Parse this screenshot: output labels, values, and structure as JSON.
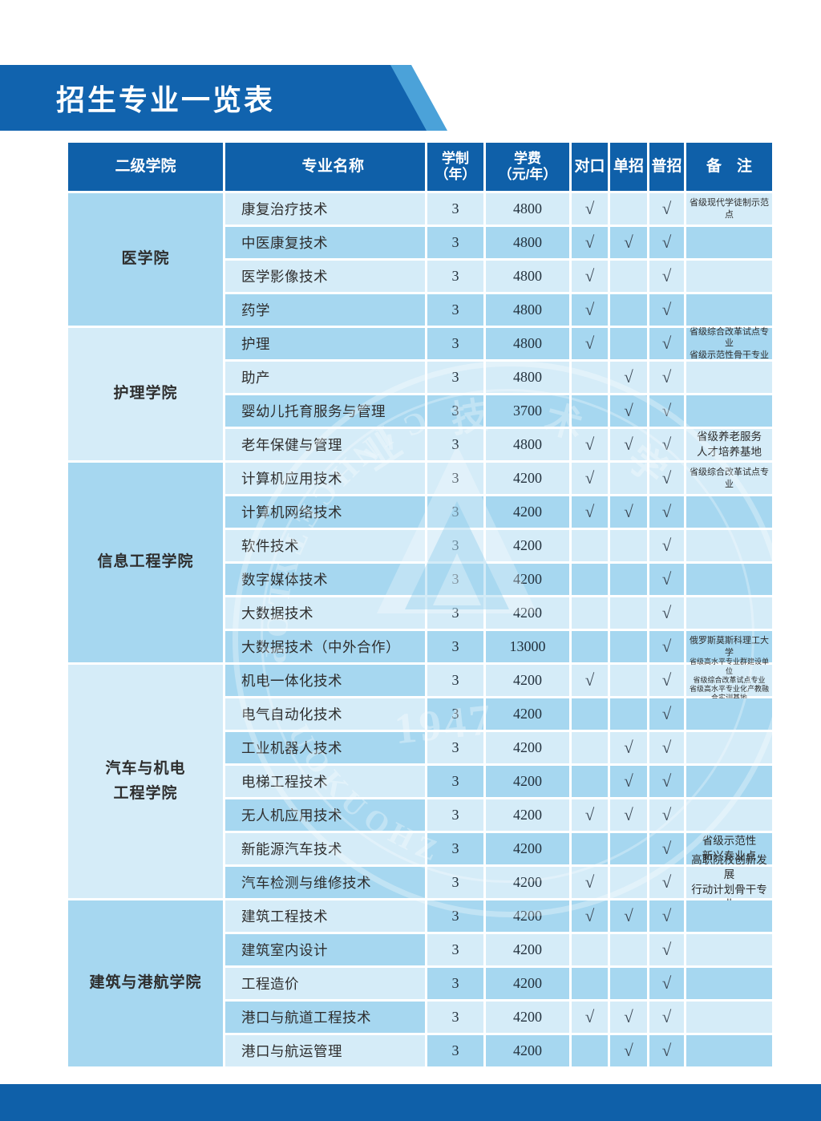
{
  "page_title": "招生专业一览表",
  "colors": {
    "banner_blue": "#1163ae",
    "banner_accent": "#4ba2d9",
    "header_blue": "#0f60a9",
    "row_light": "#d5ecf8",
    "row_medium": "#a6d7f0",
    "footer_blue": "#0f60a9",
    "check_color": "#3b4754"
  },
  "table": {
    "headers": [
      {
        "key": "college",
        "label": "二级学院",
        "small": false
      },
      {
        "key": "major",
        "label": "专业名称",
        "small": false
      },
      {
        "key": "years",
        "label": "学制\n（年）",
        "small": true
      },
      {
        "key": "tuition",
        "label": "学费\n（元/年）",
        "small": true
      },
      {
        "key": "dk",
        "label": "对口",
        "small": false
      },
      {
        "key": "dz",
        "label": "单招",
        "small": false
      },
      {
        "key": "pz",
        "label": "普招",
        "small": false
      },
      {
        "key": "remark",
        "label": "备　注",
        "small": false
      }
    ],
    "check_symbol": "√",
    "groups": [
      {
        "college": "医学院",
        "college_shade": "M",
        "rows": [
          {
            "major": "康复治疗技术",
            "years": "3",
            "tuition": "4800",
            "dk": true,
            "dz": false,
            "pz": true,
            "remark": [
              "省级现代学徒制示范点"
            ],
            "remark_size": "xs",
            "shade": "L",
            "name_shade": "L"
          },
          {
            "major": "中医康复技术",
            "years": "3",
            "tuition": "4800",
            "dk": true,
            "dz": true,
            "pz": true,
            "remark": [],
            "remark_size": "xs",
            "shade": "M",
            "name_shade": "M"
          },
          {
            "major": "医学影像技术",
            "years": "3",
            "tuition": "4800",
            "dk": true,
            "dz": false,
            "pz": true,
            "remark": [],
            "remark_size": "xs",
            "shade": "L",
            "name_shade": "L"
          },
          {
            "major": "药学",
            "years": "3",
            "tuition": "4800",
            "dk": true,
            "dz": false,
            "pz": true,
            "remark": [],
            "remark_size": "xs",
            "shade": "M",
            "name_shade": "M"
          }
        ]
      },
      {
        "college": "护理学院",
        "college_shade": "L",
        "rows": [
          {
            "major": "护理",
            "years": "3",
            "tuition": "4800",
            "dk": true,
            "dz": false,
            "pz": true,
            "remark": [
              "省级综合改革试点专业",
              "省级示范性骨干专业"
            ],
            "remark_size": "xs",
            "shade": "M",
            "name_shade": "M"
          },
          {
            "major": "助产",
            "years": "3",
            "tuition": "4800",
            "dk": false,
            "dz": true,
            "pz": true,
            "remark": [],
            "remark_size": "xs",
            "shade": "L",
            "name_shade": "L"
          },
          {
            "major": "婴幼儿托育服务与管理",
            "years": "3",
            "tuition": "3700",
            "dk": false,
            "dz": true,
            "pz": true,
            "remark": [],
            "remark_size": "xs",
            "shade": "M",
            "name_shade": "M"
          },
          {
            "major": "老年保健与管理",
            "years": "3",
            "tuition": "4800",
            "dk": true,
            "dz": true,
            "pz": true,
            "remark": [
              "省级养老服务",
              "人才培养基地"
            ],
            "remark_size": "md",
            "shade": "L",
            "name_shade": "L"
          }
        ]
      },
      {
        "college": "信息工程学院",
        "college_shade": "M",
        "rows": [
          {
            "major": "计算机应用技术",
            "years": "3",
            "tuition": "4200",
            "dk": true,
            "dz": false,
            "pz": true,
            "remark": [
              "省级综合改革试点专业"
            ],
            "remark_size": "xs",
            "shade": "L",
            "name_shade": "L"
          },
          {
            "major": "计算机网络技术",
            "years": "3",
            "tuition": "4200",
            "dk": true,
            "dz": true,
            "pz": true,
            "remark": [],
            "remark_size": "xs",
            "shade": "M",
            "name_shade": "M"
          },
          {
            "major": "软件技术",
            "years": "3",
            "tuition": "4200",
            "dk": false,
            "dz": false,
            "pz": true,
            "remark": [],
            "remark_size": "xs",
            "shade": "L",
            "name_shade": "L"
          },
          {
            "major": "数字媒体技术",
            "years": "3",
            "tuition": "4200",
            "dk": false,
            "dz": false,
            "pz": true,
            "remark": [],
            "remark_size": "xs",
            "shade": "M",
            "name_shade": "M"
          },
          {
            "major": "大数据技术",
            "years": "3",
            "tuition": "4200",
            "dk": false,
            "dz": false,
            "pz": true,
            "remark": [],
            "remark_size": "xs",
            "shade": "L",
            "name_shade": "L"
          },
          {
            "major": "大数据技术（中外合作）",
            "years": "3",
            "tuition": "13000",
            "dk": false,
            "dz": false,
            "pz": true,
            "remark": [
              "俄罗斯莫斯科理工大学"
            ],
            "remark_size": "xs",
            "shade": "M",
            "name_shade": "M"
          }
        ]
      },
      {
        "college": "汽车与机电\n工程学院",
        "college_shade": "L",
        "rows": [
          {
            "major": "机电一体化技术",
            "years": "3",
            "tuition": "4200",
            "dk": true,
            "dz": false,
            "pz": true,
            "remark": [
              "省级高水平专业群建设单位",
              "省级综合改革试点专业",
              "省级高水平专业化产教融合实训基地"
            ],
            "remark_size": "xxs",
            "shade": "L",
            "name_shade": "M"
          },
          {
            "major": "电气自动化技术",
            "years": "3",
            "tuition": "4200",
            "dk": false,
            "dz": false,
            "pz": true,
            "remark": [],
            "remark_size": "xs",
            "shade": "M",
            "name_shade": "L"
          },
          {
            "major": "工业机器人技术",
            "years": "3",
            "tuition": "4200",
            "dk": false,
            "dz": true,
            "pz": true,
            "remark": [],
            "remark_size": "xs",
            "shade": "L",
            "name_shade": "M"
          },
          {
            "major": "电梯工程技术",
            "years": "3",
            "tuition": "4200",
            "dk": false,
            "dz": true,
            "pz": true,
            "remark": [],
            "remark_size": "xs",
            "shade": "M",
            "name_shade": "L"
          },
          {
            "major": "无人机应用技术",
            "years": "3",
            "tuition": "4200",
            "dk": true,
            "dz": true,
            "pz": true,
            "remark": [],
            "remark_size": "xs",
            "shade": "L",
            "name_shade": "M"
          },
          {
            "major": "新能源汽车技术",
            "years": "3",
            "tuition": "4200",
            "dk": false,
            "dz": false,
            "pz": true,
            "remark": [
              "省级示范性",
              "新兴专业点"
            ],
            "remark_size": "md",
            "shade": "M",
            "name_shade": "L"
          },
          {
            "major": "汽车检测与维修技术",
            "years": "3",
            "tuition": "4200",
            "dk": true,
            "dz": false,
            "pz": true,
            "remark": [
              "高职院校创新发展",
              "行动计划骨干专业"
            ],
            "remark_size": "md",
            "shade": "L",
            "name_shade": "M"
          }
        ]
      },
      {
        "college": "建筑与港航学院",
        "college_shade": "M",
        "rows": [
          {
            "major": "建筑工程技术",
            "years": "3",
            "tuition": "4200",
            "dk": true,
            "dz": true,
            "pz": true,
            "remark": [],
            "remark_size": "xs",
            "shade": "M",
            "name_shade": "L"
          },
          {
            "major": "建筑室内设计",
            "years": "3",
            "tuition": "4200",
            "dk": false,
            "dz": false,
            "pz": true,
            "remark": [],
            "remark_size": "xs",
            "shade": "L",
            "name_shade": "M"
          },
          {
            "major": "工程造价",
            "years": "3",
            "tuition": "4200",
            "dk": false,
            "dz": false,
            "pz": true,
            "remark": [],
            "remark_size": "xs",
            "shade": "M",
            "name_shade": "L"
          },
          {
            "major": "港口与航道工程技术",
            "years": "3",
            "tuition": "4200",
            "dk": true,
            "dz": true,
            "pz": true,
            "remark": [],
            "remark_size": "xs",
            "shade": "L",
            "name_shade": "M"
          },
          {
            "major": "港口与航运管理",
            "years": "3",
            "tuition": "4200",
            "dk": false,
            "dz": true,
            "pz": true,
            "remark": [],
            "remark_size": "xs",
            "shade": "M",
            "name_shade": "L"
          }
        ]
      }
    ]
  },
  "watermark": {
    "year": "1947",
    "arc_chars": [
      "业",
      "技",
      "术",
      "学"
    ],
    "arc_text": "ZHOUKOU  POLYTECHNIC"
  }
}
